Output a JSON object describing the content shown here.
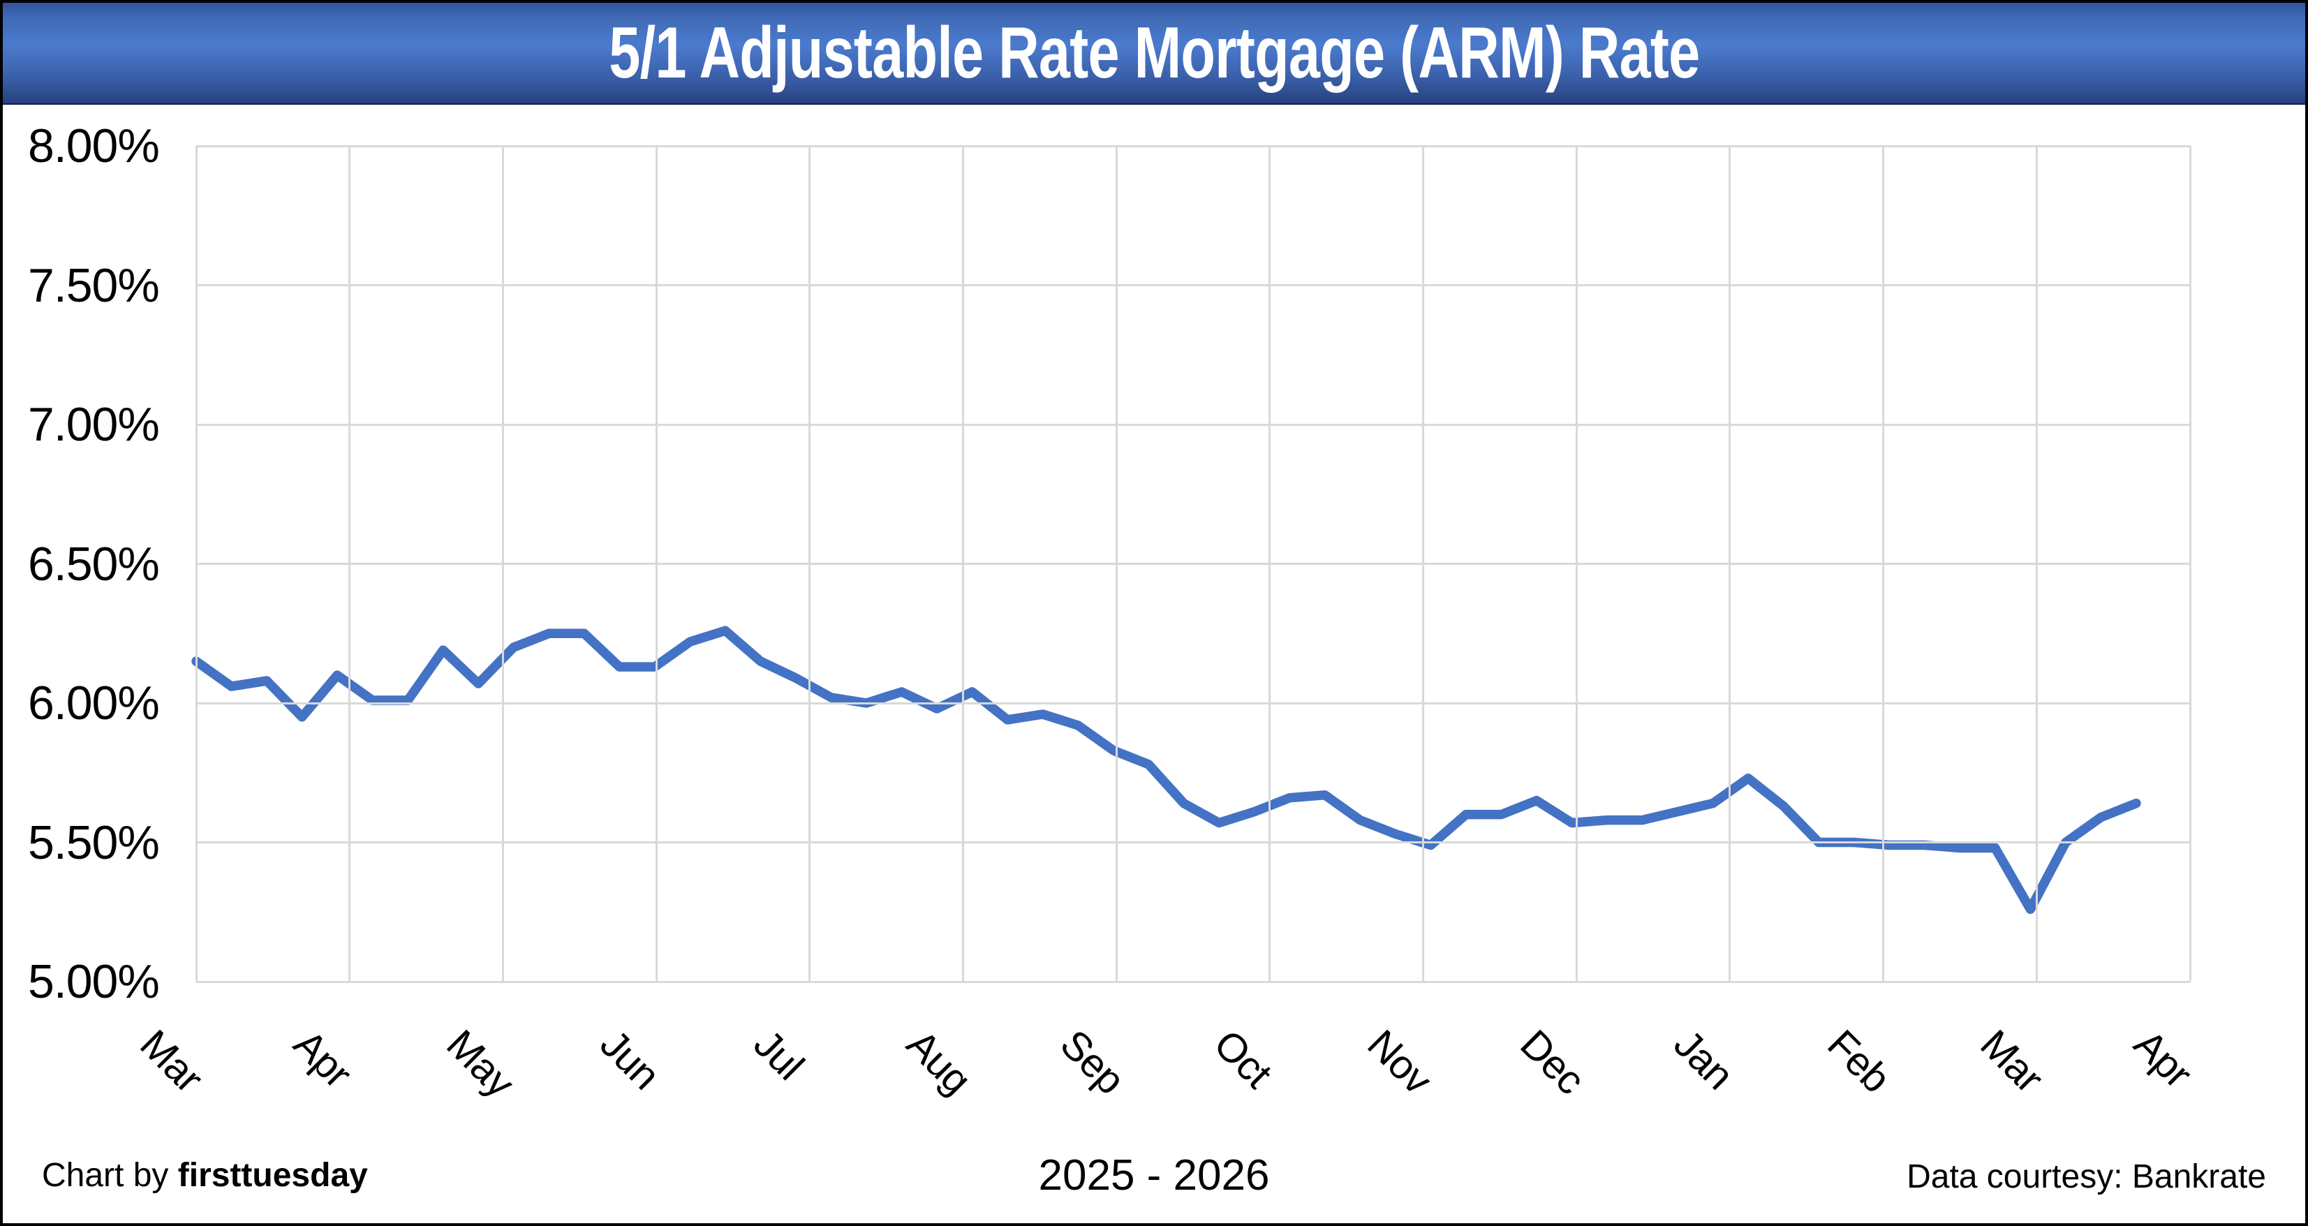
{
  "banner": {
    "title": "5/1 Adjustable Rate Mortgage (ARM) Rate"
  },
  "colors": {
    "line": "#4472C4",
    "grid": "#D9D9D9",
    "banner_top": "#33549C",
    "banner_upper": "#3F69B5",
    "banner_mid": "#4B7BCE",
    "banner_lower": "#3A5FA9",
    "banner_bottom": "#27427E",
    "banner_text": "#FFFFFF"
  },
  "chart_data": {
    "type": "line",
    "title": "5/1 Adjustable Rate Mortgage (ARM) Rate",
    "xlabel": "2025 - 2026",
    "ylabel": "",
    "x_months": [
      "Mar",
      "Apr",
      "May",
      "Jun",
      "Jul",
      "Aug",
      "Sep",
      "Oct",
      "Nov",
      "Dec",
      "Jan",
      "Feb",
      "Mar",
      "Apr"
    ],
    "y_ticks": [
      "8.00%",
      "7.50%",
      "7.00%",
      "6.50%",
      "6.00%",
      "5.50%",
      "5.00%"
    ],
    "ylim": [
      5.0,
      8.0
    ],
    "grid": true,
    "legend_position": "none",
    "frequency": "weekly",
    "series": [
      {
        "name": "5/1 ARM rate",
        "color": "#4472C4",
        "values": [
          6.15,
          6.06,
          6.08,
          5.95,
          6.1,
          6.01,
          6.01,
          6.19,
          6.07,
          6.2,
          6.25,
          6.25,
          6.13,
          6.13,
          6.22,
          6.26,
          6.15,
          6.09,
          6.02,
          6.0,
          6.04,
          5.98,
          6.04,
          5.94,
          5.96,
          5.92,
          5.83,
          5.78,
          5.64,
          5.57,
          5.61,
          5.66,
          5.67,
          5.58,
          5.53,
          5.49,
          5.6,
          5.6,
          5.65,
          5.57,
          5.58,
          5.58,
          5.61,
          5.64,
          5.73,
          5.63,
          5.5,
          5.5,
          5.49,
          5.49,
          5.48,
          5.48,
          5.26,
          5.5,
          5.59,
          5.64
        ]
      }
    ]
  },
  "footer": {
    "credit_prefix": "Chart by ",
    "credit_brand": "firsttuesday",
    "period": "2025 - 2026",
    "source": "Data courtesy: Bankrate"
  }
}
